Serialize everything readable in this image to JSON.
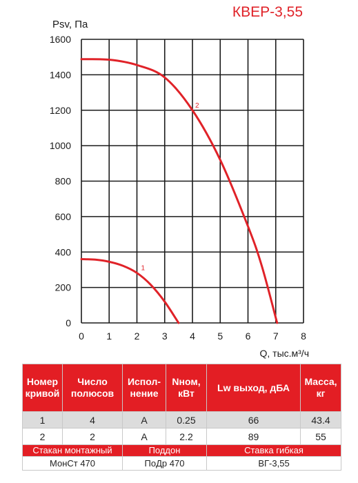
{
  "title": "КВЕР-3,55",
  "chart_data": {
    "type": "line",
    "ylabel": "Psv, Па",
    "xlabel": "Q, тыс.м³/ч",
    "xlim": [
      0,
      8
    ],
    "ylim": [
      0,
      1600
    ],
    "x_ticks": [
      0,
      1,
      2,
      3,
      4,
      5,
      6,
      7,
      8
    ],
    "y_ticks": [
      0,
      200,
      400,
      600,
      800,
      1000,
      1200,
      1400,
      1600
    ],
    "grid": true,
    "series": [
      {
        "name": "1",
        "color": "#e02228",
        "x": [
          0,
          0.5,
          1.0,
          1.5,
          2.0,
          2.5,
          3.0,
          3.5
        ],
        "y": [
          360,
          357,
          345,
          322,
          282,
          215,
          120,
          0
        ]
      },
      {
        "name": "2",
        "color": "#e02228",
        "x": [
          0,
          1.0,
          2.0,
          3.0,
          4.0,
          5.0,
          6.0,
          6.5,
          7.05
        ],
        "y": [
          1488,
          1485,
          1455,
          1385,
          1200,
          920,
          545,
          320,
          0
        ]
      }
    ]
  },
  "table": {
    "headers": [
      "Номер кривой",
      "Число полюсов",
      "Испол- нение",
      "Nном, кВт",
      "Lw выход, дБА",
      "Масса, кг"
    ],
    "rows": [
      [
        "1",
        "4",
        "А",
        "0.25",
        "66",
        "43.4"
      ],
      [
        "2",
        "2",
        "А",
        "2.2",
        "89",
        "55"
      ]
    ],
    "accessory_headers": [
      "Стакан монтажный",
      "Поддон",
      "Ставка гибкая"
    ],
    "accessory_values": [
      "МонСт 470",
      "ПоДр 470",
      "ВГ-3,55"
    ]
  }
}
